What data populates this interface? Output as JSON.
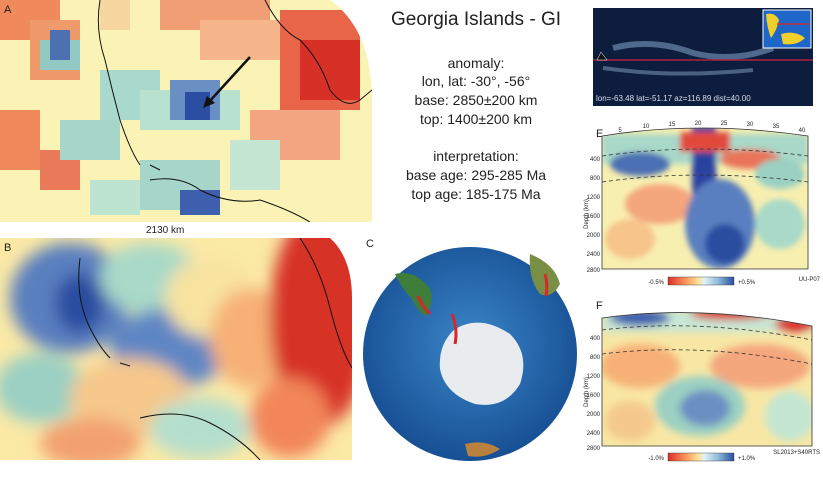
{
  "title": "Georgia Islands - GI",
  "anomaly": {
    "heading": "anomaly:",
    "lonlat": "lon, lat: -30°, -56°",
    "base": "base: 2850±200 km",
    "top": "top: 1400±200 km"
  },
  "interpretation": {
    "heading": "interpretation:",
    "base_age": "base age: 295-285 Ma",
    "top_age": "top age: 185-175 Ma"
  },
  "panels": {
    "a": "A",
    "b": "B",
    "c": "C",
    "e": "E",
    "f": "F"
  },
  "scale_label": "2130 km",
  "location_readout": "lon=-63.48 lat=-51.17 az=116.89 dist=40.00",
  "section_e": {
    "top_ticks": [
      "5",
      "10",
      "15",
      "20",
      "25",
      "30",
      "35",
      "40"
    ],
    "depth_ticks": [
      "400",
      "800",
      "1200",
      "1600",
      "2000",
      "2400",
      "2800"
    ],
    "depth_label": "Depth (km)",
    "cbar_min": "-0.5%",
    "cbar_max": "+0.5%",
    "model": "UU-P07"
  },
  "section_f": {
    "depth_ticks": [
      "400",
      "800",
      "1200",
      "1600",
      "2000",
      "2400",
      "2800"
    ],
    "depth_label": "Depth (km)",
    "cbar_min": "-1.0%",
    "cbar_max": "+1.0%",
    "model": "SL2013+S40RTS"
  },
  "colors": {
    "red": "#d73027",
    "orange": "#fc8d59",
    "yellow": "#fee090",
    "pale": "#f6f3c0",
    "cyan": "#91d0c6",
    "lightblue": "#91bfdb",
    "blue": "#4575b4",
    "darkblue": "#1c3a9e",
    "ocean": "#1f5fa8"
  }
}
